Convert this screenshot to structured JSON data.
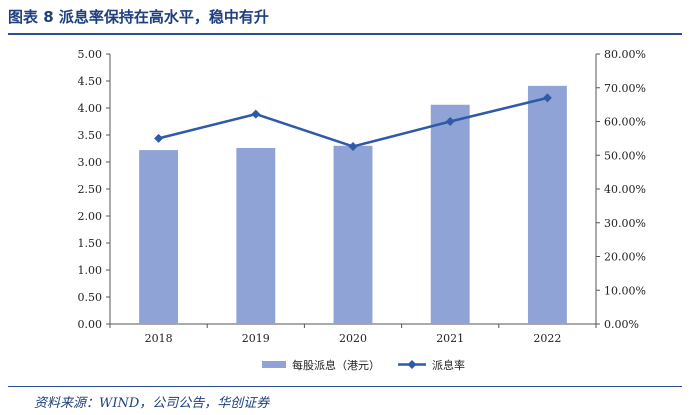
{
  "figure_title": "图表 8   派息率保持在高水平，稳中有升",
  "source": "资料来源：WIND，公司公告，华创证券",
  "chart_data": {
    "type": "bar",
    "categories": [
      "2018",
      "2019",
      "2020",
      "2021",
      "2022"
    ],
    "series": [
      {
        "name": "每股派息（港元）",
        "type": "bar",
        "axis": "left",
        "color": "#8fa3d6",
        "values": [
          3.22,
          3.26,
          3.3,
          4.06,
          4.41
        ]
      },
      {
        "name": "派息率",
        "type": "line",
        "axis": "right",
        "color": "#2f5aa8",
        "marker": "diamond",
        "values": [
          55.0,
          62.2,
          52.6,
          60.0,
          67.0
        ]
      }
    ],
    "y_left": {
      "range": [
        0,
        5
      ],
      "ticks": [
        "0.00",
        "0.50",
        "1.00",
        "1.50",
        "2.00",
        "2.50",
        "3.00",
        "3.50",
        "4.00",
        "4.50",
        "5.00"
      ]
    },
    "y_right": {
      "range": [
        0,
        80
      ],
      "ticks": [
        "0.00%",
        "10.00%",
        "20.00%",
        "30.00%",
        "40.00%",
        "50.00%",
        "60.00%",
        "70.00%",
        "80.00%"
      ]
    },
    "legend_position": "bottom-center",
    "grid": false
  }
}
